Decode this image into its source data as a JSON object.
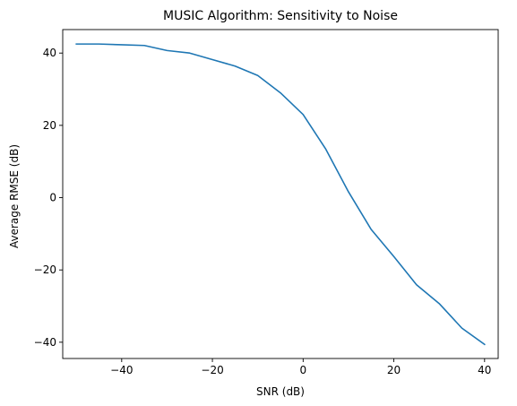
{
  "chart_data": {
    "type": "line",
    "title": "MUSIC Algorithm: Sensitivity to Noise",
    "xlabel": "SNR (dB)",
    "ylabel": "Average RMSE (dB)",
    "xlim": [
      -53,
      43
    ],
    "ylim": [
      -44.5,
      46.5
    ],
    "grid": false,
    "legend": "none",
    "line_color": "#1f77b4",
    "xticks": [
      -40,
      -20,
      0,
      20,
      40
    ],
    "xtick_labels": [
      "−40",
      "−20",
      "0",
      "20",
      "40"
    ],
    "yticks": [
      -40,
      -20,
      0,
      20,
      40
    ],
    "ytick_labels": [
      "−40",
      "−20",
      "0",
      "20",
      "40"
    ],
    "series": [
      {
        "x": [
          -50,
          -45,
          -40,
          -35,
          -30,
          -25,
          -20,
          -15,
          -10,
          -5,
          0,
          5,
          10,
          15,
          20,
          25,
          30,
          35,
          40
        ],
        "y": [
          42.5,
          42.5,
          42.3,
          42.1,
          40.7,
          40.0,
          38.2,
          36.4,
          33.8,
          29.0,
          23.0,
          13.4,
          1.6,
          -8.8,
          -16.3,
          -24.1,
          -29.3,
          -36.1,
          -40.6
        ]
      }
    ]
  }
}
